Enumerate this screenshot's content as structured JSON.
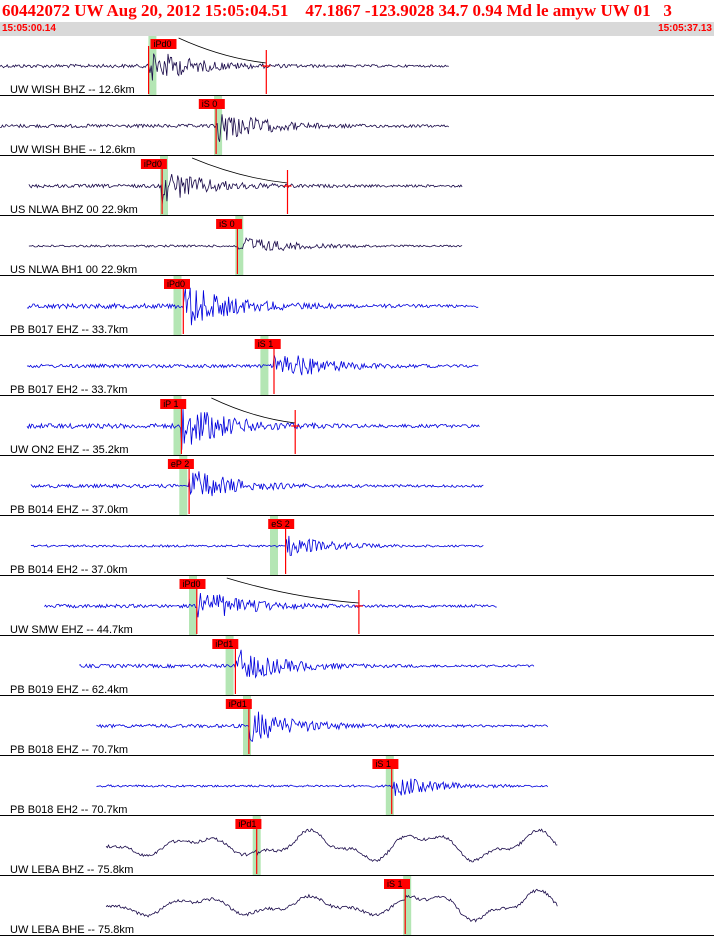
{
  "header": {
    "title": "60442072 UW Aug 20, 2012 15:05:04.51    47.1867 -123.9028 34.7 0.94 Md le amyw UW 01   3",
    "time_start": "15:05:00.14",
    "time_end": "15:05:37.13"
  },
  "colors": {
    "title": "#ff0000",
    "pick_flag": "#ff0000",
    "pick_window": "#b4e6b4",
    "trace_dark": "#1a0a4a",
    "trace_blue": "#0000dd",
    "separator": "#000000",
    "time_bar": "#d9d9d9"
  },
  "chart_data": {
    "type": "line",
    "time_range": [
      "15:05:00.14",
      "15:05:37.13"
    ],
    "traces": [
      {
        "label": "UW WISH BHZ -- 12.6km",
        "pick": "iPd0",
        "pick_time_s": 7.8,
        "pick_line_s": 7.7,
        "window_s": 7.9,
        "coda_end_s": 13.8,
        "color": "dark",
        "amp": "medium",
        "start_s": 0.0,
        "end_s": 23.3
      },
      {
        "label": "UW WISH BHE -- 12.6km",
        "pick": "iS 0",
        "pick_time_s": 10.3,
        "pick_line_s": 11.2,
        "window_s": 11.3,
        "color": "dark",
        "amp": "medium",
        "start_s": 0.0,
        "end_s": 23.3
      },
      {
        "label": "US NLWA BHZ 00 22.9km",
        "pick": "iPd0",
        "pick_time_s": 7.3,
        "pick_line_s": 8.4,
        "window_s": 8.5,
        "coda_end_s": 14.9,
        "color": "dark",
        "amp": "medium",
        "start_s": 1.5,
        "end_s": 24.0
      },
      {
        "label": "US NLWA BH1 00 22.9km",
        "pick": "iS 0",
        "pick_time_s": 11.2,
        "pick_line_s": 12.3,
        "window_s": 12.4,
        "color": "dark",
        "amp": "small",
        "start_s": 1.5,
        "end_s": 24.0
      },
      {
        "label": "PB B017 EHZ -- 33.7km",
        "pick": "iPd0",
        "pick_time_s": 8.5,
        "pick_line_s": 9.5,
        "window_s": 9.2,
        "color": "blue",
        "amp": "large",
        "start_s": 1.4,
        "end_s": 24.8
      },
      {
        "label": "PB B017 EH2 -- 33.7km",
        "pick": "iS 1",
        "pick_time_s": 13.2,
        "pick_line_s": 14.2,
        "window_s": 13.7,
        "color": "blue",
        "amp": "medium",
        "start_s": 1.4,
        "end_s": 24.8
      },
      {
        "label": "UW ON2 EHZ -- 35.2km",
        "pick": "iP 1",
        "pick_time_s": 8.3,
        "pick_line_s": 9.4,
        "window_s": 9.2,
        "coda_end_s": 15.3,
        "color": "blue",
        "amp": "large",
        "start_s": 1.4,
        "end_s": 24.9
      },
      {
        "label": "PB B014 EHZ -- 37.0km",
        "pick": "eP 2",
        "pick_time_s": 8.7,
        "pick_line_s": 9.8,
        "window_s": 9.5,
        "color": "blue",
        "amp": "medium",
        "start_s": 1.6,
        "end_s": 25.1
      },
      {
        "label": "PB B014 EH2 -- 37.0km",
        "pick": "eS 2",
        "pick_time_s": 13.9,
        "pick_line_s": 14.8,
        "window_s": 14.2,
        "color": "blue",
        "amp": "small",
        "start_s": 1.6,
        "end_s": 25.1
      },
      {
        "label": "UW SMW EHZ -- 44.7km",
        "pick": "iPd0",
        "pick_time_s": 9.3,
        "pick_line_s": 10.2,
        "window_s": 10.0,
        "coda_end_s": 18.6,
        "color": "blue",
        "amp": "medium",
        "start_s": 2.3,
        "end_s": 25.8
      },
      {
        "label": "PB B019 EHZ -- 62.4km",
        "pick": "iPd1",
        "pick_time_s": 11.0,
        "pick_line_s": 12.2,
        "window_s": 11.9,
        "color": "blue",
        "amp": "medium",
        "start_s": 4.1,
        "end_s": 27.7
      },
      {
        "label": "PB B018 EHZ -- 70.7km",
        "pick": "iPd1",
        "pick_time_s": 11.7,
        "pick_line_s": 12.9,
        "window_s": 12.8,
        "color": "blue",
        "amp": "medium",
        "start_s": 5.0,
        "end_s": 28.4
      },
      {
        "label": "PB B018 EH2 -- 70.7km",
        "pick": "iS 1",
        "pick_time_s": 19.3,
        "pick_line_s": 20.3,
        "window_s": 20.2,
        "color": "blue",
        "amp": "small",
        "start_s": 5.0,
        "end_s": 28.4
      },
      {
        "label": "UW LEBA BHZ -- 75.8km",
        "pick": "iPd1",
        "pick_time_s": 12.2,
        "pick_line_s": 13.3,
        "window_s": 13.3,
        "color": "dark",
        "amp": "noisy",
        "start_s": 5.5,
        "end_s": 28.9
      },
      {
        "label": "UW LEBA BHE -- 75.8km",
        "pick": "iS 1",
        "pick_time_s": 19.9,
        "pick_line_s": 21.0,
        "window_s": 21.1,
        "color": "dark",
        "amp": "noisy",
        "start_s": 5.5,
        "end_s": 28.9
      }
    ]
  }
}
